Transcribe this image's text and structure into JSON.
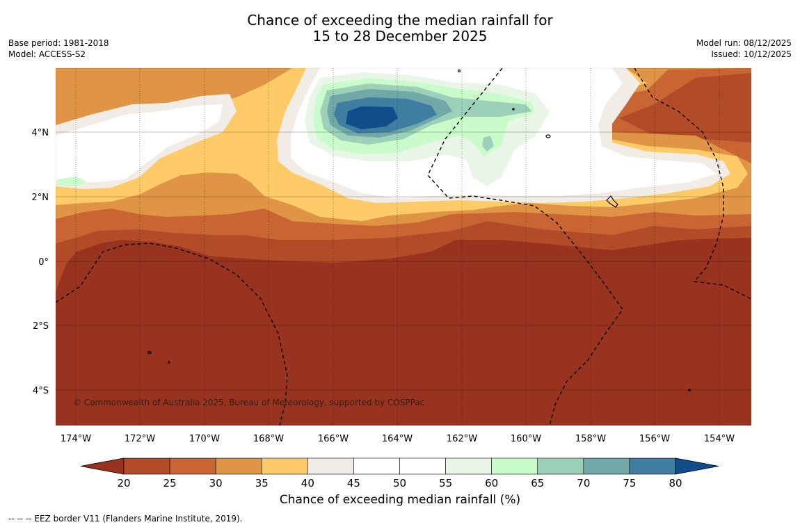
{
  "title": {
    "line1": "Chance of exceeding the median rainfall for",
    "line2": "15 to 28 December 2025"
  },
  "meta_left": {
    "base_period": "Base period: 1981-2018",
    "model": "Model: ACCESS-S2"
  },
  "meta_right": {
    "model_run": "Model run: 08/12/2025",
    "issued": "Issued: 10/12/2025"
  },
  "map": {
    "lon_labels": [
      "174°W",
      "172°W",
      "170°W",
      "168°W",
      "166°W",
      "164°W",
      "162°W",
      "160°W",
      "158°W",
      "156°W",
      "154°W"
    ],
    "lat_labels": [
      "4°N",
      "2°N",
      "0°",
      "2°S",
      "4°S"
    ],
    "copyright": "© Commonwealth of Australia 2025, Bureau of Meteorology, supported by COSPPac"
  },
  "colorbar": {
    "label": "Chance of exceeding median rainfall (%)",
    "ticks": [
      "20",
      "25",
      "30",
      "35",
      "40",
      "45",
      "50",
      "55",
      "60",
      "65",
      "70",
      "75",
      "80"
    ],
    "colors": [
      "#97331f",
      "#b24b28",
      "#c96533",
      "#e09445",
      "#fecb68",
      "#f1ece6",
      "#ffffff",
      "#ffffff",
      "#e9f5e6",
      "#c9fcca",
      "#9dd0b9",
      "#71a8a8",
      "#3f7ea1",
      "#104d8b"
    ]
  },
  "footer": "--  --  -- EEZ border V11 (Flanders Marine Institute, 2019)."
}
